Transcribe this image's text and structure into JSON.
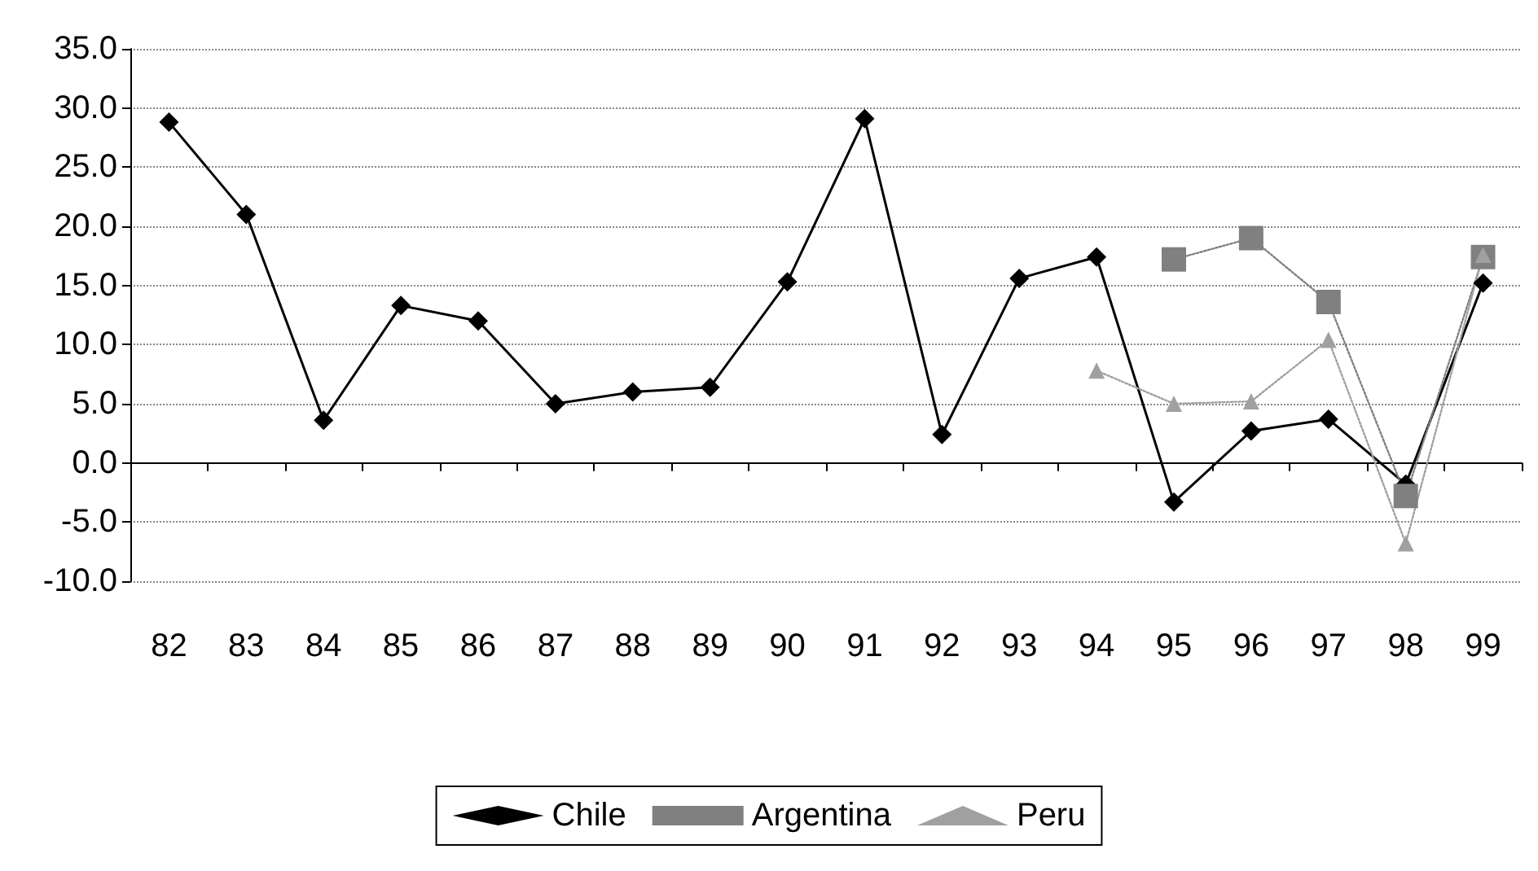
{
  "chart_data": {
    "type": "line",
    "categories": [
      "82",
      "83",
      "84",
      "85",
      "86",
      "87",
      "88",
      "89",
      "90",
      "91",
      "92",
      "93",
      "94",
      "95",
      "96",
      "97",
      "98",
      "99"
    ],
    "series": [
      {
        "name": "Chile",
        "color": "#000000",
        "marker": "diamond",
        "line_style": "solid",
        "values": [
          28.8,
          21.0,
          3.6,
          13.3,
          12.0,
          5.0,
          6.0,
          6.4,
          15.3,
          29.1,
          2.4,
          15.6,
          17.4,
          -3.3,
          2.7,
          3.7,
          -1.8,
          15.2
        ]
      },
      {
        "name": "Argentina",
        "color": "#808080",
        "marker": "square",
        "line_style": "dotted",
        "values": [
          null,
          null,
          null,
          null,
          null,
          null,
          null,
          null,
          null,
          null,
          null,
          null,
          null,
          17.2,
          19.0,
          13.6,
          -2.8,
          17.4
        ]
      },
      {
        "name": "Peru",
        "color": "#a0a0a0",
        "marker": "triangle",
        "line_style": "dotted",
        "values": [
          null,
          null,
          null,
          null,
          null,
          null,
          null,
          null,
          null,
          null,
          null,
          null,
          7.8,
          5.0,
          5.2,
          10.4,
          -6.8,
          17.6
        ]
      }
    ],
    "ylim": [
      -10,
      35
    ],
    "yticks": [
      {
        "value": -10,
        "label": "-10.0"
      },
      {
        "value": -5,
        "label": "-5.0"
      },
      {
        "value": 0,
        "label": "0.0"
      },
      {
        "value": 5,
        "label": "5.0"
      },
      {
        "value": 10,
        "label": "10.0"
      },
      {
        "value": 15,
        "label": "15.0"
      },
      {
        "value": 20,
        "label": "20.0"
      },
      {
        "value": 25,
        "label": "25.0"
      },
      {
        "value": 30,
        "label": "30.0"
      },
      {
        "value": 35,
        "label": "35.0"
      }
    ],
    "grid": "y",
    "legend": "bottom"
  }
}
